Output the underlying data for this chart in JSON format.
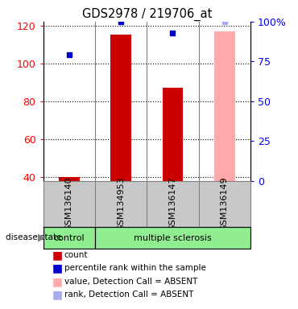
{
  "title": "GDS2978 / 219706_at",
  "samples": [
    "GSM136140",
    "GSM134953",
    "GSM136147",
    "GSM136149"
  ],
  "bar_values": [
    40,
    115,
    87,
    117
  ],
  "bar_colors": [
    "#cc0000",
    "#cc0000",
    "#cc0000",
    "#ffaaaa"
  ],
  "dot_values": [
    79,
    100,
    93,
    100
  ],
  "dot_colors": [
    "#0000cc",
    "#0000cc",
    "#0000cc",
    "#aaaaee"
  ],
  "ylim_left": [
    38,
    122
  ],
  "ylim_right": [
    0,
    100
  ],
  "yticks_left": [
    40,
    60,
    80,
    100,
    120
  ],
  "ytick_labels_left": [
    "40",
    "60",
    "80",
    "100",
    "120"
  ],
  "yticks_right_vals": [
    0,
    25,
    50,
    75,
    100
  ],
  "ytick_labels_right": [
    "0",
    "25",
    "50",
    "75",
    "100%"
  ],
  "legend_items": [
    {
      "label": "count",
      "color": "#cc0000"
    },
    {
      "label": "percentile rank within the sample",
      "color": "#0000cc"
    },
    {
      "label": "value, Detection Call = ABSENT",
      "color": "#ffaaaa"
    },
    {
      "label": "rank, Detection Call = ABSENT",
      "color": "#aaaaee"
    }
  ],
  "bar_bottom": 38
}
